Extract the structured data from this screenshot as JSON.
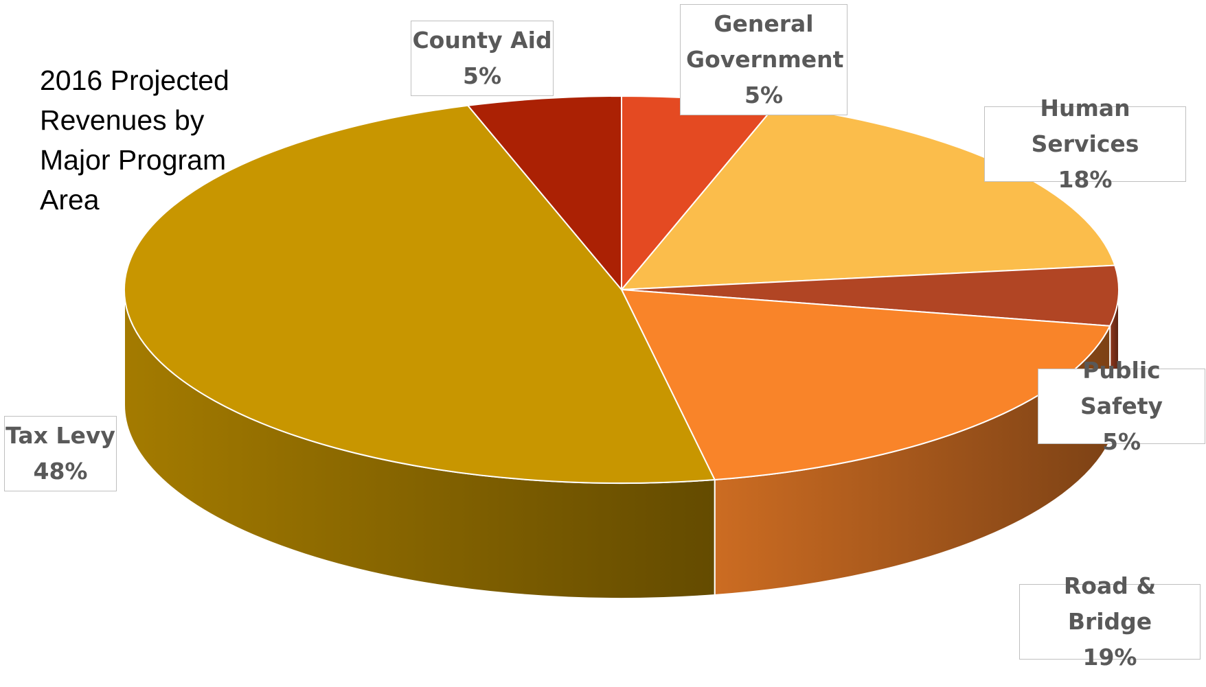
{
  "chart_data": {
    "type": "pie",
    "style": "3d",
    "title": "2016 Projected Revenues by Major Program Area",
    "legend": "none",
    "slices": [
      {
        "label": "General Government",
        "value": 5,
        "display": "5%",
        "color": "#E44A22"
      },
      {
        "label": "Human Services",
        "value": 18,
        "display": "18%",
        "color": "#FBBD4B"
      },
      {
        "label": "Public Safety",
        "value": 5,
        "display": "5%",
        "color": "#B14524"
      },
      {
        "label": "Road & Bridge",
        "value": 19,
        "display": "19%",
        "color": "#F98429"
      },
      {
        "label": "Tax Levy",
        "value": 48,
        "display": "48%",
        "color": "#C89600"
      },
      {
        "label": "County Aid",
        "value": 5,
        "display": "5%",
        "color": "#AB2104"
      }
    ]
  }
}
